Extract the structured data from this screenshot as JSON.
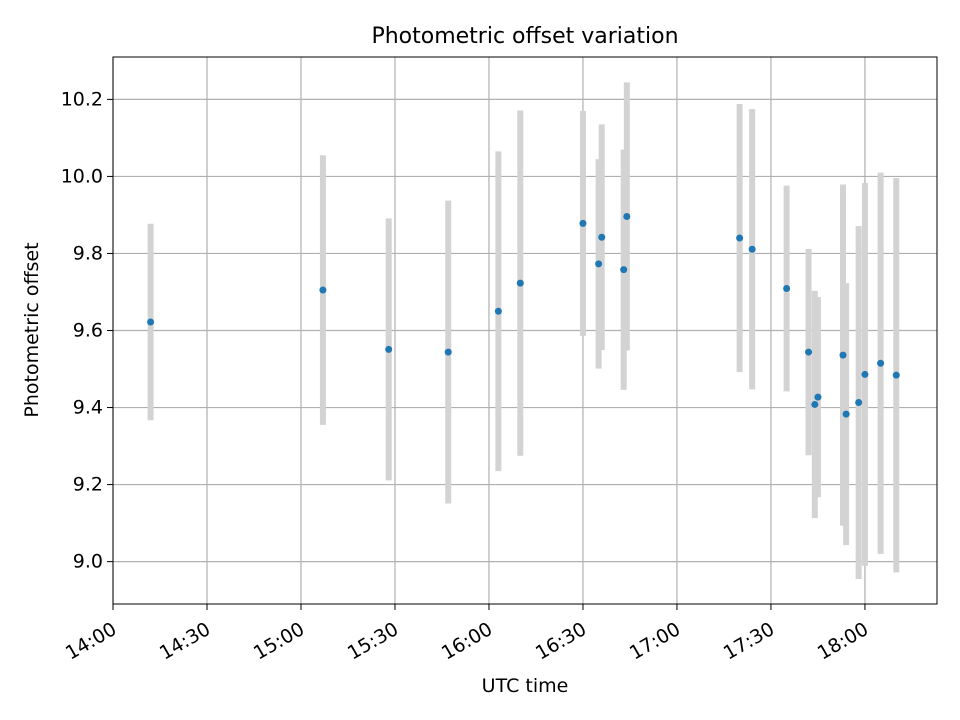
{
  "chart_data": {
    "type": "scatter",
    "title": "Photometric offset variation",
    "xlabel": "UTC time",
    "ylabel": "Photometric offset",
    "xlim": [
      "14:00",
      "18:23"
    ],
    "ylim": [
      8.89,
      10.31
    ],
    "x_ticks": [
      "14:00",
      "14:30",
      "15:00",
      "15:30",
      "16:00",
      "16:30",
      "17:00",
      "17:30",
      "18:00"
    ],
    "y_ticks": [
      9.0,
      9.2,
      9.4,
      9.6,
      9.8,
      10.0,
      10.2
    ],
    "grid": true,
    "point_color": "#1f77b4",
    "errorbar_color": "#d3d3d3",
    "points": [
      {
        "x": "14:12",
        "y": 9.622,
        "err": 0.255
      },
      {
        "x": "15:07",
        "y": 9.705,
        "err": 0.35
      },
      {
        "x": "15:28",
        "y": 9.551,
        "err": 0.34
      },
      {
        "x": "15:47",
        "y": 9.544,
        "err": 0.393
      },
      {
        "x": "16:03",
        "y": 9.65,
        "err": 0.415
      },
      {
        "x": "16:10",
        "y": 9.723,
        "err": 0.448
      },
      {
        "x": "16:30",
        "y": 9.878,
        "err": 0.292
      },
      {
        "x": "16:35",
        "y": 9.773,
        "err": 0.272
      },
      {
        "x": "16:36",
        "y": 9.842,
        "err": 0.293
      },
      {
        "x": "16:43",
        "y": 9.758,
        "err": 0.312
      },
      {
        "x": "16:44",
        "y": 9.896,
        "err": 0.348
      },
      {
        "x": "17:20",
        "y": 9.84,
        "err": 0.348
      },
      {
        "x": "17:24",
        "y": 9.811,
        "err": 0.364
      },
      {
        "x": "17:35",
        "y": 9.709,
        "err": 0.267
      },
      {
        "x": "17:42",
        "y": 9.544,
        "err": 0.268
      },
      {
        "x": "17:44",
        "y": 9.408,
        "err": 0.295
      },
      {
        "x": "17:45",
        "y": 9.427,
        "err": 0.26
      },
      {
        "x": "17:53",
        "y": 9.536,
        "err": 0.443
      },
      {
        "x": "17:54",
        "y": 9.383,
        "err": 0.34
      },
      {
        "x": "17:58",
        "y": 9.413,
        "err": 0.458
      },
      {
        "x": "18:00",
        "y": 9.486,
        "err": 0.497
      },
      {
        "x": "18:05",
        "y": 9.515,
        "err": 0.495
      },
      {
        "x": "18:10",
        "y": 9.484,
        "err": 0.512
      }
    ]
  }
}
